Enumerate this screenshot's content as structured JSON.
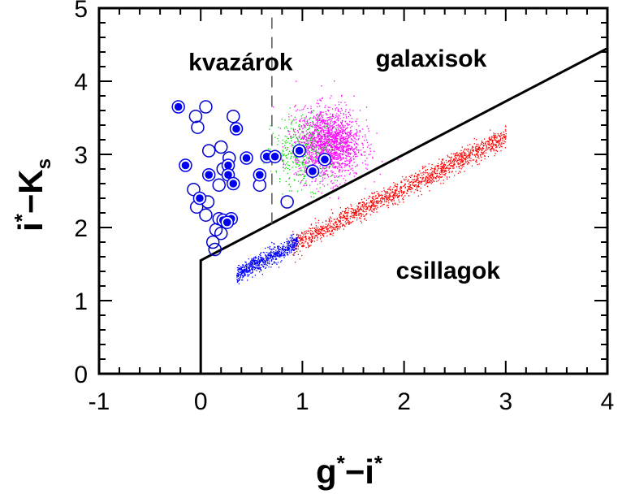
{
  "chart_data": {
    "type": "scatter",
    "title": "",
    "xlabel": "g*−i*",
    "ylabel": "i*−K_s",
    "xlabel_parts": {
      "a": "g",
      "sup_a": "*",
      "dash": "−",
      "b": "i",
      "sup_b": "*"
    },
    "ylabel_parts": {
      "a": "i",
      "sup_a": "*",
      "dash": "−",
      "b": "K",
      "sub_b": "s"
    },
    "xlim": [
      -1,
      4
    ],
    "ylim": [
      0,
      5
    ],
    "xticks": [
      -1,
      0,
      1,
      2,
      3,
      4
    ],
    "yticks": [
      0,
      1,
      2,
      3,
      4,
      5
    ],
    "xtick_labels": [
      "-1",
      "0",
      "1",
      "2",
      "3",
      "4"
    ],
    "ytick_labels": [
      "0",
      "1",
      "2",
      "3",
      "4",
      "5"
    ],
    "grid": false,
    "legend": "none",
    "annotations": [
      {
        "text": "kvazárok",
        "x": -0.12,
        "y": 4.15
      },
      {
        "text": "galaxisok",
        "x": 1.72,
        "y": 4.2
      },
      {
        "text": "csillagok",
        "x": 1.92,
        "y": 1.3
      }
    ],
    "boundary_line": {
      "color": "#000000",
      "points": [
        [
          0,
          0
        ],
        [
          0,
          1.55
        ],
        [
          4,
          4.45
        ]
      ]
    },
    "dashed_line": {
      "x": 0.7,
      "y_range": [
        2.05,
        5
      ],
      "color": "#555555"
    },
    "point_clouds": [
      {
        "region": "csillagok",
        "color": "#ff0000",
        "count": 1600,
        "x_range": [
          0.9,
          3.0
        ],
        "y_at_x0": 1.12,
        "slope": 0.71,
        "scatter": 0.07
      },
      {
        "region": "csillagok",
        "color": "#0000ff",
        "count": 700,
        "x_range": [
          0.35,
          0.95
        ],
        "y_at_x0": 1.12,
        "slope": 0.71,
        "scatter": 0.06
      },
      {
        "region": "galaxisok",
        "color": "#ff00ff",
        "count": 1800,
        "center": [
          1.25,
          3.15
        ],
        "spread": [
          0.16,
          0.24
        ]
      },
      {
        "region": "galaxisok",
        "color": "#00dd00",
        "count": 350,
        "center": [
          1.0,
          3.05
        ],
        "spread": [
          0.15,
          0.25
        ]
      }
    ],
    "series": [
      {
        "marker": "open-circle",
        "color": "#0000cc",
        "points": [
          [
            0.05,
            3.65
          ],
          [
            -0.05,
            3.52
          ],
          [
            -0.03,
            3.37
          ],
          [
            0.32,
            3.52
          ],
          [
            0.2,
            3.1
          ],
          [
            0.08,
            3.05
          ],
          [
            0.28,
            2.95
          ],
          [
            0.22,
            2.8
          ],
          [
            0.18,
            2.58
          ],
          [
            -0.07,
            2.52
          ],
          [
            0.58,
            2.58
          ],
          [
            0.07,
            2.35
          ],
          [
            -0.04,
            2.28
          ],
          [
            0.05,
            2.17
          ],
          [
            0.18,
            2.12
          ],
          [
            0.15,
            1.97
          ],
          [
            0.2,
            1.92
          ],
          [
            0.12,
            1.8
          ],
          [
            0.14,
            1.7
          ],
          [
            0.85,
            2.35
          ]
        ]
      },
      {
        "marker": "filled-circle",
        "color": "#0000ee",
        "points": [
          [
            -0.22,
            3.65
          ],
          [
            0.35,
            3.35
          ],
          [
            -0.15,
            2.85
          ],
          [
            0.27,
            2.85
          ],
          [
            0.45,
            2.95
          ],
          [
            0.65,
            2.97
          ],
          [
            0.73,
            2.97
          ],
          [
            0.97,
            3.05
          ],
          [
            1.22,
            2.93
          ],
          [
            0.08,
            2.72
          ],
          [
            0.27,
            2.72
          ],
          [
            0.58,
            2.72
          ],
          [
            1.1,
            2.77
          ],
          [
            0.32,
            2.6
          ],
          [
            -0.01,
            2.4
          ],
          [
            0.22,
            2.1
          ],
          [
            0.3,
            2.12
          ],
          [
            0.26,
            2.07
          ]
        ]
      }
    ]
  }
}
